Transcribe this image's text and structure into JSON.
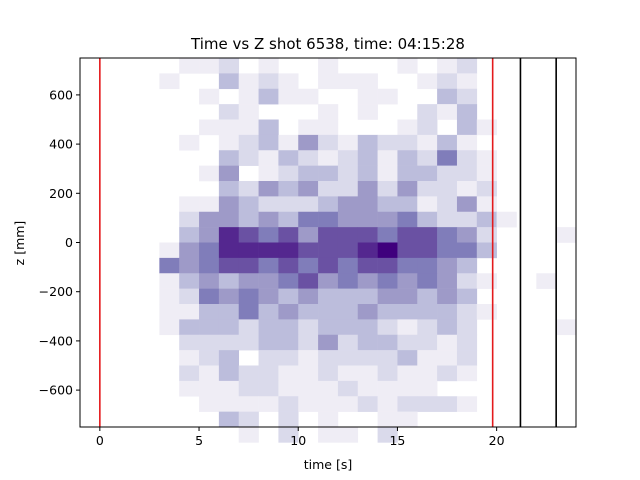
{
  "chart_data": {
    "type": "heatmap",
    "title": "Time vs Z shot 6538, time: 04:15:28",
    "xlabel": "time [s]",
    "ylabel": "z [mm]",
    "xlim": [
      -1.0,
      24.0
    ],
    "ylim": [
      -750,
      750
    ],
    "x_ticks": [
      0,
      5,
      10,
      15,
      20
    ],
    "y_ticks": [
      -600,
      -400,
      -200,
      0,
      200,
      400,
      600
    ],
    "colormap": "Purples",
    "grid": false,
    "bin_x_start": -1.0,
    "bin_width_s": 1.0,
    "bin_y_top": 750,
    "bin_height_mm": 62.5,
    "density_rows_top_to_bottom": [
      [
        0,
        0,
        0,
        0,
        0,
        1,
        1,
        2,
        0,
        1,
        0,
        0,
        1,
        0,
        0,
        0,
        1,
        0,
        1,
        2,
        0,
        0,
        0,
        0,
        0
      ],
      [
        0,
        0,
        0,
        0,
        1,
        0,
        0,
        3,
        1,
        2,
        1,
        0,
        1,
        1,
        1,
        0,
        0,
        1,
        2,
        1,
        0,
        0,
        0,
        0,
        0
      ],
      [
        0,
        0,
        0,
        0,
        0,
        0,
        1,
        0,
        1,
        3,
        1,
        1,
        0,
        0,
        1,
        1,
        0,
        0,
        3,
        2,
        0,
        0,
        0,
        0,
        0
      ],
      [
        0,
        0,
        0,
        0,
        0,
        0,
        0,
        2,
        1,
        0,
        0,
        0,
        1,
        0,
        1,
        0,
        0,
        2,
        1,
        3,
        0,
        0,
        0,
        0,
        0
      ],
      [
        0,
        0,
        0,
        0,
        0,
        0,
        1,
        1,
        1,
        3,
        0,
        1,
        1,
        0,
        0,
        0,
        1,
        2,
        0,
        3,
        1,
        0,
        0,
        0,
        0
      ],
      [
        0,
        0,
        0,
        0,
        0,
        1,
        0,
        1,
        2,
        3,
        1,
        4,
        2,
        1,
        3,
        2,
        2,
        1,
        3,
        1,
        0,
        0,
        0,
        0,
        0
      ],
      [
        0,
        0,
        0,
        0,
        0,
        0,
        0,
        3,
        2,
        1,
        3,
        2,
        1,
        2,
        3,
        1,
        3,
        2,
        5,
        2,
        1,
        0,
        0,
        0,
        0
      ],
      [
        0,
        0,
        0,
        0,
        0,
        0,
        1,
        4,
        0,
        1,
        2,
        3,
        3,
        2,
        3,
        1,
        3,
        3,
        2,
        2,
        1,
        0,
        0,
        0,
        0
      ],
      [
        0,
        0,
        0,
        0,
        0,
        0,
        0,
        3,
        2,
        4,
        3,
        4,
        2,
        2,
        4,
        2,
        4,
        2,
        2,
        1,
        2,
        0,
        0,
        0,
        0
      ],
      [
        0,
        0,
        0,
        0,
        0,
        1,
        1,
        4,
        3,
        2,
        2,
        2,
        3,
        4,
        4,
        3,
        3,
        1,
        2,
        4,
        1,
        0,
        0,
        0,
        0
      ],
      [
        0,
        0,
        0,
        0,
        0,
        2,
        4,
        4,
        3,
        4,
        3,
        5,
        5,
        4,
        4,
        4,
        5,
        3,
        2,
        2,
        3,
        1,
        0,
        0,
        0
      ],
      [
        0,
        0,
        0,
        0,
        0,
        3,
        4,
        7,
        6,
        5,
        6,
        4,
        6,
        6,
        6,
        5,
        6,
        6,
        5,
        4,
        2,
        0,
        0,
        0,
        1
      ],
      [
        0,
        0,
        0,
        0,
        1,
        4,
        5,
        7,
        7,
        7,
        7,
        6,
        6,
        6,
        7,
        8,
        6,
        6,
        5,
        5,
        3,
        0,
        0,
        0,
        0
      ],
      [
        0,
        0,
        0,
        0,
        5,
        4,
        5,
        6,
        6,
        5,
        6,
        5,
        6,
        5,
        6,
        6,
        5,
        5,
        4,
        3,
        0,
        0,
        0,
        0,
        0
      ],
      [
        0,
        0,
        0,
        0,
        1,
        3,
        4,
        3,
        4,
        4,
        5,
        6,
        4,
        5,
        4,
        5,
        4,
        5,
        4,
        2,
        1,
        0,
        0,
        1,
        0
      ],
      [
        0,
        0,
        0,
        0,
        1,
        2,
        5,
        4,
        5,
        4,
        3,
        4,
        3,
        3,
        3,
        4,
        4,
        3,
        4,
        3,
        0,
        0,
        0,
        0,
        0
      ],
      [
        0,
        0,
        0,
        0,
        1,
        1,
        3,
        3,
        5,
        3,
        4,
        3,
        3,
        3,
        4,
        3,
        3,
        3,
        3,
        2,
        1,
        0,
        0,
        0,
        0
      ],
      [
        0,
        0,
        0,
        0,
        1,
        3,
        3,
        3,
        2,
        3,
        3,
        2,
        3,
        3,
        3,
        2,
        1,
        2,
        3,
        2,
        0,
        0,
        0,
        0,
        1
      ],
      [
        0,
        0,
        0,
        0,
        0,
        2,
        2,
        2,
        2,
        3,
        3,
        2,
        4,
        2,
        3,
        3,
        2,
        2,
        1,
        2,
        0,
        0,
        0,
        0,
        0
      ],
      [
        0,
        0,
        0,
        0,
        0,
        1,
        2,
        3,
        0,
        2,
        2,
        1,
        2,
        2,
        2,
        2,
        3,
        1,
        1,
        2,
        0,
        0,
        0,
        0,
        0
      ],
      [
        0,
        0,
        0,
        0,
        0,
        2,
        1,
        3,
        2,
        2,
        1,
        1,
        2,
        1,
        1,
        2,
        1,
        1,
        2,
        1,
        0,
        0,
        0,
        0,
        0
      ],
      [
        0,
        0,
        0,
        0,
        0,
        1,
        1,
        1,
        2,
        2,
        1,
        1,
        1,
        2,
        1,
        1,
        1,
        1,
        0,
        0,
        0,
        0,
        0,
        0,
        0
      ],
      [
        0,
        0,
        0,
        0,
        0,
        0,
        1,
        1,
        1,
        1,
        2,
        1,
        1,
        1,
        2,
        1,
        2,
        2,
        2,
        1,
        0,
        0,
        0,
        0,
        0
      ],
      [
        0,
        0,
        0,
        0,
        0,
        0,
        0,
        3,
        2,
        0,
        2,
        0,
        1,
        0,
        0,
        1,
        1,
        0,
        0,
        0,
        0,
        0,
        0,
        0,
        0
      ],
      [
        0,
        0,
        0,
        0,
        0,
        0,
        0,
        0,
        1,
        0,
        2,
        0,
        1,
        1,
        0,
        2,
        0,
        0,
        0,
        0,
        0,
        0,
        0,
        0,
        0
      ]
    ],
    "density_max": 8,
    "vlines": [
      {
        "x": 0.0,
        "color": "#e41a1c"
      },
      {
        "x": 19.8,
        "color": "#e41a1c"
      },
      {
        "x": 21.2,
        "color": "#000000"
      },
      {
        "x": 23.0,
        "color": "#000000"
      }
    ]
  }
}
